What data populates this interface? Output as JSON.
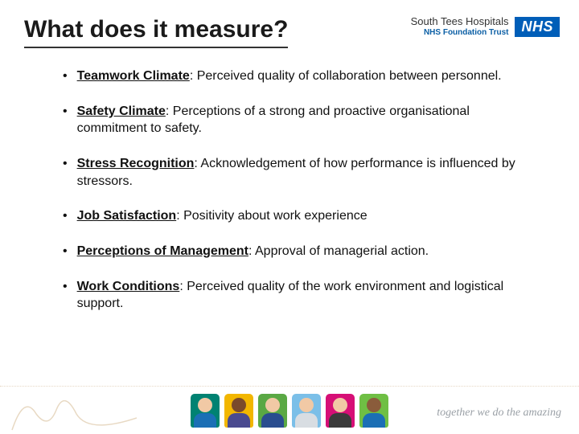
{
  "header": {
    "title": "What does it measure?",
    "trust_line1": "South Tees Hospitals",
    "trust_line2": "NHS Foundation Trust",
    "nhs_badge": "NHS"
  },
  "items": [
    {
      "term": "Teamwork Climate",
      "description": ": Perceived quality of collaboration between personnel."
    },
    {
      "term": "Safety Climate",
      "description": ": Perceptions of a strong and proactive organisational commitment to safety."
    },
    {
      "term": "Stress Recognition",
      "description": ": Acknowledgement of how performance is influenced by stressors."
    },
    {
      "term": "Job Satisfaction",
      "description": ": Positivity about work experience"
    },
    {
      "term": "Perceptions of Management",
      "description": ": Approval of managerial action."
    },
    {
      "term": "Work Conditions",
      "description": ": Perceived quality of the work environment and logistical support."
    }
  ],
  "avatars": [
    {
      "bg": "#008272",
      "skin": "#f1c9a5",
      "shirt": "#1b6fb5"
    },
    {
      "bg": "#f2b600",
      "skin": "#7a4a2b",
      "shirt": "#4a4a8f"
    },
    {
      "bg": "#5aa844",
      "skin": "#f1c9a5",
      "shirt": "#2a4d8f"
    },
    {
      "bg": "#7bbfe8",
      "skin": "#f1c9a5",
      "shirt": "#d8dde2"
    },
    {
      "bg": "#d60f76",
      "skin": "#f1c9a5",
      "shirt": "#3b3b3b"
    },
    {
      "bg": "#6fbf44",
      "skin": "#8a5c3b",
      "shirt": "#1b6fb5"
    }
  ],
  "footer": {
    "tagline": "together we do the amazing",
    "squiggle_color": "#e8d9c3"
  },
  "colors": {
    "nhs_blue": "#005eb8",
    "text": "#111111"
  }
}
